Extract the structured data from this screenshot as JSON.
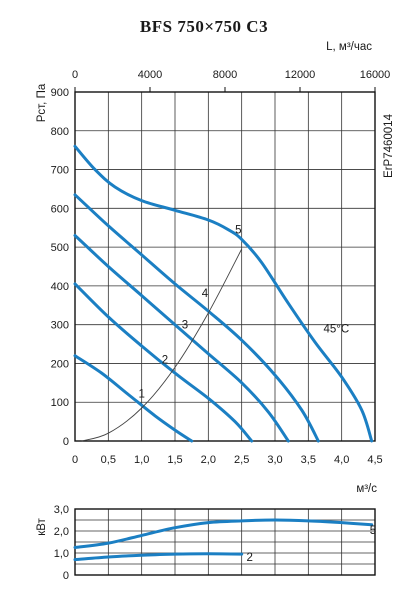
{
  "chart_data": [
    {
      "type": "line",
      "title": "BFS 750×750 C3",
      "side_label": "ErP7460014",
      "ylabel": "Рст, Па",
      "xlabel": "м³/с",
      "x2label": "L, м³/час",
      "xlim": [
        0,
        4.5
      ],
      "ylim": [
        0,
        900
      ],
      "x2lim": [
        0,
        16000
      ],
      "x_ticks": [
        "0",
        "0,5",
        "1,0",
        "1,5",
        "2,0",
        "2,5",
        "3,0",
        "3,5",
        "4,0",
        "4,5"
      ],
      "y_ticks": [
        "0",
        "100",
        "200",
        "300",
        "400",
        "500",
        "600",
        "700",
        "800",
        "900"
      ],
      "x2_ticks": [
        "0",
        "4000",
        "8000",
        "12000",
        "16000"
      ],
      "grid": true,
      "series": [
        {
          "name": "",
          "x": [
            0,
            0.4,
            0.8,
            1.2,
            1.5,
            1.75
          ],
          "y": [
            220,
            175,
            120,
            65,
            28,
            0
          ]
        },
        {
          "name": "",
          "x": [
            0,
            0.5,
            1.0,
            1.5,
            2.0,
            2.4,
            2.65
          ],
          "y": [
            405,
            320,
            245,
            175,
            110,
            50,
            0
          ]
        },
        {
          "name": "",
          "x": [
            0,
            0.5,
            1.0,
            1.5,
            2.0,
            2.5,
            2.9,
            3.2
          ],
          "y": [
            530,
            450,
            375,
            300,
            225,
            150,
            75,
            0
          ]
        },
        {
          "name": "",
          "x": [
            0,
            0.5,
            1.0,
            1.5,
            2.0,
            2.5,
            3.0,
            3.4,
            3.65
          ],
          "y": [
            635,
            555,
            480,
            405,
            335,
            260,
            170,
            80,
            0
          ]
        },
        {
          "name": "",
          "x": [
            0,
            0.3,
            0.6,
            1.0,
            1.5,
            2.0,
            2.3,
            2.5,
            2.8,
            3.2,
            3.6,
            4.0,
            4.3,
            4.45
          ],
          "y": [
            760,
            700,
            655,
            620,
            595,
            570,
            545,
            520,
            460,
            355,
            255,
            165,
            80,
            0
          ]
        },
        {
          "name": "",
          "x": [
            0.1,
            0.5,
            1.0,
            1.5,
            2.0,
            2.5
          ],
          "y": [
            0,
            20,
            85,
            190,
            330,
            495
          ]
        }
      ],
      "annotations": [
        "1",
        "2",
        "3",
        "4",
        "5",
        "45°C"
      ]
    },
    {
      "type": "line",
      "ylabel": "кВт",
      "xlim": [
        0,
        4.5
      ],
      "ylim": [
        0,
        3.0
      ],
      "y_ticks": [
        "0",
        "1,0",
        "2,0",
        "3,0"
      ],
      "grid": true,
      "series": [
        {
          "name": "",
          "x": [
            0,
            0.5,
            1.0,
            1.5,
            2.0,
            2.5
          ],
          "y": [
            0.7,
            0.82,
            0.9,
            0.95,
            0.97,
            0.95
          ]
        },
        {
          "name": "",
          "x": [
            0,
            0.5,
            1.0,
            1.5,
            2.0,
            2.5,
            3.0,
            3.5,
            4.0,
            4.45
          ],
          "y": [
            1.25,
            1.45,
            1.8,
            2.15,
            2.38,
            2.46,
            2.5,
            2.46,
            2.38,
            2.28
          ]
        }
      ],
      "annotations": [
        "2",
        "5"
      ]
    }
  ]
}
